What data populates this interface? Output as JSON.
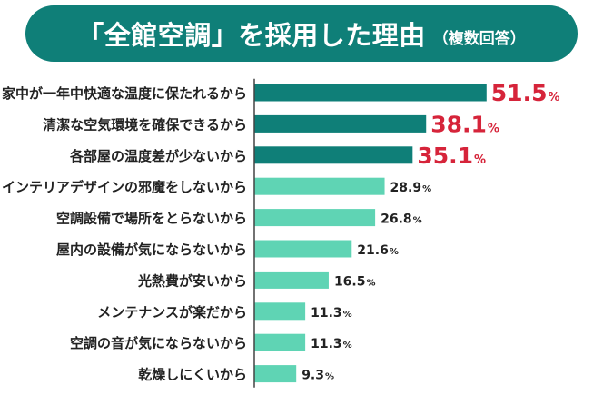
{
  "title": "「全館空調」を採用した理由",
  "subtitle": "（複数回答）",
  "colors": {
    "banner": "#0f7f78",
    "bar_top": "#0f7f78",
    "bar_rest": "#5fd4b4",
    "highlight_text": "#d6243a",
    "label_text": "#222222",
    "axis_line": "#444444"
  },
  "chart_data": {
    "type": "bar",
    "orientation": "horizontal",
    "title": "「全館空調」を採用した理由",
    "subtitle": "（複数回答）",
    "unit": "%",
    "categories": [
      "家中が一年中快適な温度に保たれるから",
      "清潔な空気環境を確保できるから",
      "各部屋の温度差が少ないから",
      "インテリアデザインの邪魔をしないから",
      "空調設備で場所をとらないから",
      "屋内の設備が気にならないから",
      "光熱費が安いから",
      "メンテナンスが楽だから",
      "空調の音が気にならないから",
      "乾燥しにくいから"
    ],
    "values": [
      51.5,
      38.1,
      35.1,
      28.9,
      26.8,
      21.6,
      16.5,
      11.3,
      11.3,
      9.3
    ],
    "value_labels": [
      "51.5",
      "38.1",
      "35.1",
      "28.9",
      "26.8",
      "21.6",
      "16.5",
      "11.3",
      "11.3",
      "9.3"
    ],
    "highlight_top": 3,
    "xlim": [
      0,
      60
    ],
    "grid": false,
    "legend": "none"
  }
}
